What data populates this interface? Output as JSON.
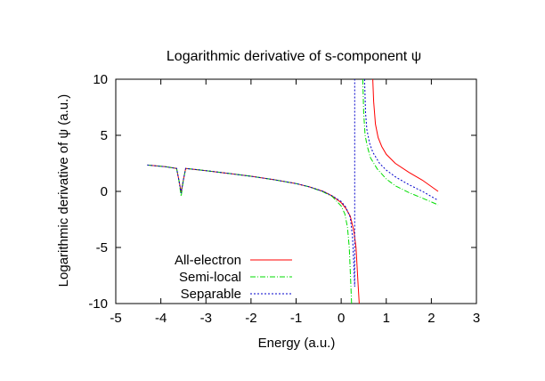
{
  "chart_data": {
    "type": "line",
    "title": "Logarithmic derivative of s-component ψ",
    "xlabel": "Energy (a.u.)",
    "ylabel": "Logarithmic derivative of ψ (a.u.)",
    "xlim": [
      -5,
      3
    ],
    "ylim": [
      -10,
      10
    ],
    "xticks": [
      -5,
      -4,
      -3,
      -2,
      -1,
      0,
      1,
      2,
      3
    ],
    "yticks": [
      -10,
      -5,
      0,
      5,
      10
    ],
    "grid": false,
    "legend_position": "bottom-left",
    "series": [
      {
        "name": "All-electron",
        "color": "#ff0000",
        "dash": "",
        "segments": [
          [
            [
              -4.3,
              2.35
            ],
            [
              -3.9,
              2.2
            ],
            [
              -3.65,
              2.05
            ],
            [
              -3.6,
              1.0
            ],
            [
              -3.55,
              -0.05
            ],
            [
              -3.5,
              1.0
            ],
            [
              -3.45,
              2.05
            ],
            [
              -3.0,
              1.85
            ],
            [
              -2.5,
              1.6
            ],
            [
              -2.0,
              1.35
            ],
            [
              -1.5,
              1.05
            ],
            [
              -1.0,
              0.7
            ],
            [
              -0.7,
              0.4
            ],
            [
              -0.4,
              0.0
            ],
            [
              -0.2,
              -0.4
            ],
            [
              0.0,
              -1.0
            ],
            [
              0.1,
              -1.5
            ],
            [
              0.2,
              -2.2
            ],
            [
              0.28,
              -3.5
            ],
            [
              0.33,
              -5.0
            ],
            [
              0.37,
              -8.0
            ],
            [
              0.4,
              -10.0
            ]
          ],
          [
            [
              0.7,
              10.0
            ],
            [
              0.72,
              8.0
            ],
            [
              0.76,
              6.0
            ],
            [
              0.82,
              4.8
            ],
            [
              0.9,
              4.0
            ],
            [
              1.0,
              3.3
            ],
            [
              1.2,
              2.5
            ],
            [
              1.5,
              1.7
            ],
            [
              1.8,
              1.0
            ],
            [
              2.15,
              0.0
            ]
          ]
        ]
      },
      {
        "name": "Semi-local",
        "color": "#00dd00",
        "dash": "6 2 1 2",
        "segments": [
          [
            [
              -4.3,
              2.35
            ],
            [
              -3.9,
              2.2
            ],
            [
              -3.65,
              2.05
            ],
            [
              -3.6,
              1.0
            ],
            [
              -3.55,
              -0.45
            ],
            [
              -3.5,
              1.0
            ],
            [
              -3.45,
              2.05
            ],
            [
              -3.0,
              1.85
            ],
            [
              -2.5,
              1.6
            ],
            [
              -2.0,
              1.35
            ],
            [
              -1.5,
              1.05
            ],
            [
              -1.0,
              0.7
            ],
            [
              -0.7,
              0.4
            ],
            [
              -0.4,
              -0.05
            ],
            [
              -0.2,
              -0.45
            ],
            [
              0.0,
              -1.3
            ],
            [
              0.08,
              -2.0
            ],
            [
              0.14,
              -3.2
            ],
            [
              0.18,
              -5.0
            ],
            [
              0.21,
              -8.0
            ],
            [
              0.23,
              -10.0
            ]
          ],
          [
            [
              0.48,
              10.0
            ],
            [
              0.5,
              7.0
            ],
            [
              0.53,
              5.0
            ],
            [
              0.58,
              4.0
            ],
            [
              0.65,
              3.0
            ],
            [
              0.8,
              2.0
            ],
            [
              1.0,
              1.1
            ],
            [
              1.2,
              0.5
            ],
            [
              1.5,
              -0.1
            ],
            [
              1.8,
              -0.6
            ],
            [
              2.15,
              -1.2
            ]
          ]
        ]
      },
      {
        "name": "Separable",
        "color": "#0000cc",
        "dash": "2 2",
        "segments": [
          [
            [
              -4.3,
              2.35
            ],
            [
              -3.9,
              2.2
            ],
            [
              -3.65,
              2.05
            ],
            [
              -3.6,
              1.0
            ],
            [
              -3.55,
              -0.15
            ],
            [
              -3.5,
              1.0
            ],
            [
              -3.45,
              2.05
            ],
            [
              -3.0,
              1.85
            ],
            [
              -2.5,
              1.6
            ],
            [
              -2.0,
              1.35
            ],
            [
              -1.5,
              1.05
            ],
            [
              -1.0,
              0.7
            ],
            [
              -0.7,
              0.4
            ],
            [
              -0.4,
              0.0
            ],
            [
              -0.2,
              -0.4
            ],
            [
              0.0,
              -0.9
            ],
            [
              0.1,
              -1.4
            ],
            [
              0.2,
              -2.3
            ],
            [
              0.25,
              -4.0
            ],
            [
              0.28,
              -6.5
            ],
            [
              0.3,
              -8.5
            ],
            [
              0.3,
              10.0
            ]
          ],
          [
            [
              0.52,
              10.0
            ],
            [
              0.54,
              7.0
            ],
            [
              0.57,
              5.5
            ],
            [
              0.63,
              4.3
            ],
            [
              0.7,
              3.5
            ],
            [
              0.85,
              2.5
            ],
            [
              1.0,
              1.9
            ],
            [
              1.2,
              1.3
            ],
            [
              1.5,
              0.6
            ],
            [
              1.8,
              0.0
            ],
            [
              2.15,
              -0.8
            ]
          ]
        ]
      }
    ]
  }
}
